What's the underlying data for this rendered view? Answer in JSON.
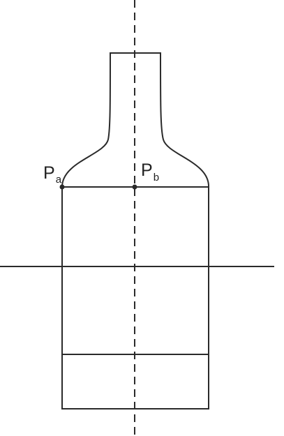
{
  "labels": {
    "pa": {
      "main": "P",
      "sub": "a"
    },
    "pb": {
      "main": "P",
      "sub": "b"
    }
  },
  "colors": {
    "stroke": "#2a2a2a",
    "background": "#ffffff"
  }
}
